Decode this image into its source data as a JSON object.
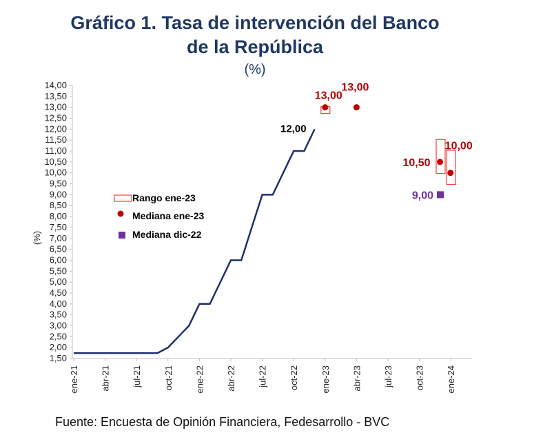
{
  "chart_data": {
    "type": "line",
    "title": "Gráfico 1. Tasa de intervención del Banco de la República",
    "title_line1": "Gráfico 1. Tasa de intervención del Banco",
    "title_line2": "de la República",
    "subtitle": "(%)",
    "ylabel": "(%)",
    "xlabel": "",
    "ylim": [
      1.5,
      14.0
    ],
    "yticks": [
      "1,50",
      "2,00",
      "2,50",
      "3,00",
      "3,50",
      "4,00",
      "4,50",
      "5,00",
      "5,50",
      "6,00",
      "6,50",
      "7,00",
      "7,50",
      "8,00",
      "8,50",
      "9,00",
      "9,50",
      "10,00",
      "10,50",
      "11,00",
      "11,50",
      "12,00",
      "12,50",
      "13,00",
      "13,50",
      "14,00"
    ],
    "xlim_months_from_ene21": [
      0,
      38
    ],
    "xticks": [
      {
        "label": "ene-21",
        "m": 0
      },
      {
        "label": "abr-21",
        "m": 3
      },
      {
        "label": "jul-21",
        "m": 6
      },
      {
        "label": "oct-21",
        "m": 9
      },
      {
        "label": "ene-22",
        "m": 12
      },
      {
        "label": "abr-22",
        "m": 15
      },
      {
        "label": "jul-22",
        "m": 18
      },
      {
        "label": "oct-22",
        "m": 21
      },
      {
        "label": "ene-23",
        "m": 24
      },
      {
        "label": "abr-23",
        "m": 27
      },
      {
        "label": "jul-23",
        "m": 30
      },
      {
        "label": "oct-23",
        "m": 33
      },
      {
        "label": "ene-24",
        "m": 36
      }
    ],
    "series": [
      {
        "name": "Tasa de intervención",
        "color": "#1f2f6b",
        "m": [
          0,
          1,
          2,
          3,
          4,
          5,
          6,
          7,
          8,
          9,
          10,
          11,
          12,
          13,
          14,
          15,
          16,
          17,
          18,
          19,
          20,
          21,
          22,
          23
        ],
        "values": [
          1.75,
          1.75,
          1.75,
          1.75,
          1.75,
          1.75,
          1.75,
          1.75,
          1.75,
          2.0,
          2.5,
          3.0,
          4.0,
          4.0,
          5.0,
          6.0,
          6.0,
          7.5,
          9.0,
          9.0,
          10.0,
          11.0,
          11.0,
          12.0
        ],
        "end_label": "12,00"
      }
    ],
    "ranges": [
      {
        "name": "Rango ene-23",
        "m": 24,
        "low": 12.75,
        "high": 13.0
      },
      {
        "name": "Rango ene-23",
        "m": 35,
        "low": 10.0,
        "high": 11.5
      },
      {
        "name": "Rango ene-23",
        "m": 36,
        "low": 9.5,
        "high": 11.0
      }
    ],
    "medians_ene23": [
      {
        "m": 24,
        "value": 13.0,
        "label": "13,00"
      },
      {
        "m": 27,
        "value": 13.0,
        "label": "13,00"
      },
      {
        "m": 35,
        "value": 10.5,
        "label": "10,50"
      },
      {
        "m": 36,
        "value": 10.0,
        "label": "10,00"
      }
    ],
    "medians_dic22": [
      {
        "m": 35,
        "value": 9.0,
        "label": "9,00"
      }
    ],
    "legend": {
      "placement": "center-left",
      "items": [
        "Rango ene-23",
        "Mediana ene-23",
        "Mediana dic-22"
      ]
    },
    "colors": {
      "line": "#1f2f6b",
      "median_ene23": "#c00000",
      "range": "#ff3b3b",
      "median_dic22": "#7030a0",
      "label_red": "#b00000"
    },
    "source": "Fuente: Encuesta de Opinión Financiera, Fedesarrollo - BVC"
  }
}
